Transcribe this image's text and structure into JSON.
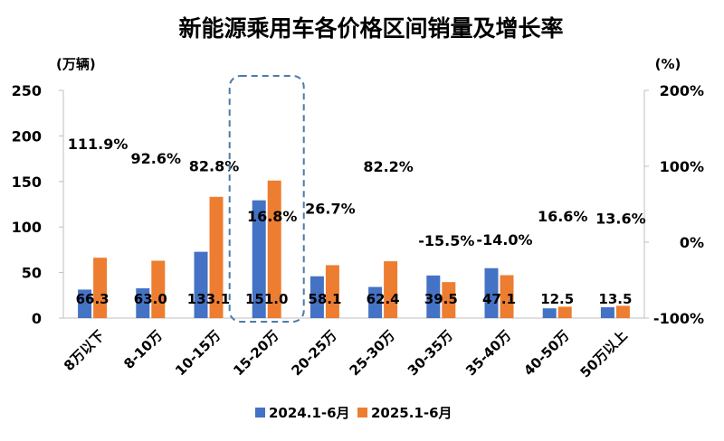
{
  "chart_data": {
    "type": "bar",
    "title": "新能源乘用车各价格区间销量及增长率",
    "y_left_unit": "(万辆)",
    "y_right_unit": "(%)",
    "y_left_ticks": [
      "250",
      "200",
      "150",
      "100",
      "50",
      "0"
    ],
    "y_right_ticks": [
      "200%",
      "100%",
      "0%",
      "-100%"
    ],
    "ylim_left": [
      0,
      250
    ],
    "ylim_right": [
      -100,
      200
    ],
    "categories": [
      "8万以下",
      "8-10万",
      "10-15万",
      "15-20万",
      "20-25万",
      "25-30万",
      "30-35万",
      "35-40万",
      "40-50万",
      "50万以上"
    ],
    "series": [
      {
        "name": "2024.1-6月",
        "color": "#4472C4",
        "values": [
          31.3,
          32.7,
          72.8,
          129.3,
          45.9,
          34.2,
          46.8,
          54.8,
          10.7,
          11.9
        ]
      },
      {
        "name": "2025.1-6月",
        "color": "#ED7D31",
        "values": [
          66.3,
          63.0,
          133.1,
          151.0,
          58.1,
          62.4,
          39.5,
          47.1,
          12.5,
          13.5
        ]
      }
    ],
    "value_labels": [
      "66.3",
      "63.0",
      "133.1",
      "151.0",
      "58.1",
      "62.4",
      "39.5",
      "47.1",
      "12.5",
      "13.5"
    ],
    "growth_rates": [
      111.9,
      92.6,
      82.8,
      16.8,
      26.7,
      82.2,
      -15.5,
      -14.0,
      16.6,
      13.6
    ],
    "growth_labels": [
      "111.9%",
      "92.6%",
      "82.8%",
      "16.8%",
      "26.7%",
      "82.2%",
      "-15.5%",
      "-14.0%",
      "16.6%",
      "13.6%"
    ],
    "negative_color": "#E8312A",
    "highlight_category": "15-20万",
    "legend_position": "bottom",
    "grid": false
  }
}
